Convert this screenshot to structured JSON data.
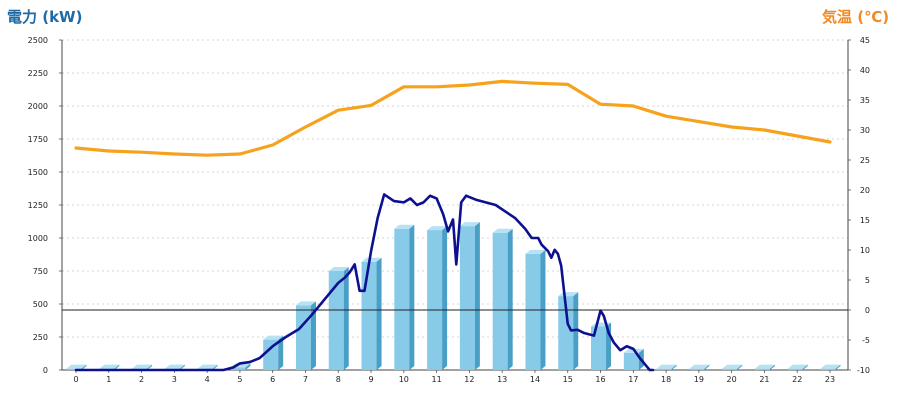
{
  "chart_data": {
    "type": "bar",
    "title_left": "電力 (kW)",
    "title_right": "気温 (℃)",
    "left_axis": {
      "min": 0,
      "max": 2500,
      "ticks": [
        "0",
        "250",
        "500",
        "750",
        "1000",
        "1250",
        "1500",
        "1750",
        "2000",
        "2250",
        "2500"
      ]
    },
    "right_axis": {
      "min": -10,
      "max": 45,
      "ticks": [
        "-10",
        "-5",
        "0",
        "5",
        "10",
        "15",
        "20",
        "25",
        "30",
        "35",
        "40",
        "45"
      ]
    },
    "categories": [
      "0",
      "1",
      "2",
      "3",
      "4",
      "5",
      "6",
      "7",
      "8",
      "9",
      "10",
      "11",
      "12",
      "13",
      "14",
      "15",
      "16",
      "17",
      "18",
      "19",
      "20",
      "21",
      "22",
      "23"
    ],
    "grid": true,
    "series": [
      {
        "kind": "bar",
        "axis": "left",
        "values": [
          10,
          10,
          10,
          10,
          10,
          20,
          230,
          490,
          750,
          820,
          1070,
          1060,
          1090,
          1040,
          880,
          560,
          330,
          130,
          10,
          10,
          10,
          10,
          10,
          10
        ],
        "color": "#87cbe8"
      },
      {
        "kind": "line",
        "axis": "left",
        "x": [
          0,
          4.5,
          4.8,
          5.0,
          5.3,
          5.6,
          6.0,
          6.4,
          6.8,
          7.2,
          7.6,
          8.0,
          8.2,
          8.35,
          8.5,
          8.65,
          8.8,
          9.0,
          9.2,
          9.4,
          9.7,
          10.0,
          10.2,
          10.4,
          10.6,
          10.8,
          11.0,
          11.2,
          11.35,
          11.5,
          11.6,
          11.75,
          11.9,
          12.0,
          12.2,
          12.5,
          12.8,
          13.1,
          13.4,
          13.7,
          13.9,
          14.1,
          14.2,
          14.4,
          14.5,
          14.6,
          14.7,
          14.8,
          14.9,
          15.0,
          15.1,
          15.3,
          15.5,
          15.8,
          16.0,
          16.1,
          16.25,
          16.4,
          16.6,
          16.8,
          17.0,
          17.2,
          17.4,
          17.5,
          17.6
        ],
        "y": [
          0,
          0,
          20,
          50,
          60,
          90,
          180,
          250,
          310,
          420,
          540,
          660,
          700,
          740,
          800,
          600,
          600,
          900,
          1150,
          1330,
          1280,
          1270,
          1300,
          1250,
          1270,
          1320,
          1300,
          1180,
          1050,
          1140,
          800,
          1270,
          1320,
          1310,
          1290,
          1270,
          1250,
          1200,
          1150,
          1070,
          1000,
          1000,
          950,
          900,
          850,
          910,
          880,
          790,
          570,
          350,
          300,
          305,
          280,
          260,
          450,
          410,
          280,
          210,
          150,
          180,
          160,
          90,
          30,
          0,
          0
        ],
        "color": "#0d108f"
      },
      {
        "kind": "line",
        "axis": "right",
        "values": [
          27,
          26.5,
          26.3,
          26,
          25.8,
          26,
          27.5,
          30.5,
          33.3,
          34.1,
          37.2,
          37.2,
          37.5,
          38.1,
          37.8,
          37.6,
          34.3,
          34,
          32.3,
          31.4,
          30.5,
          30,
          29,
          28
        ],
        "color": "#f7a21c"
      }
    ]
  }
}
